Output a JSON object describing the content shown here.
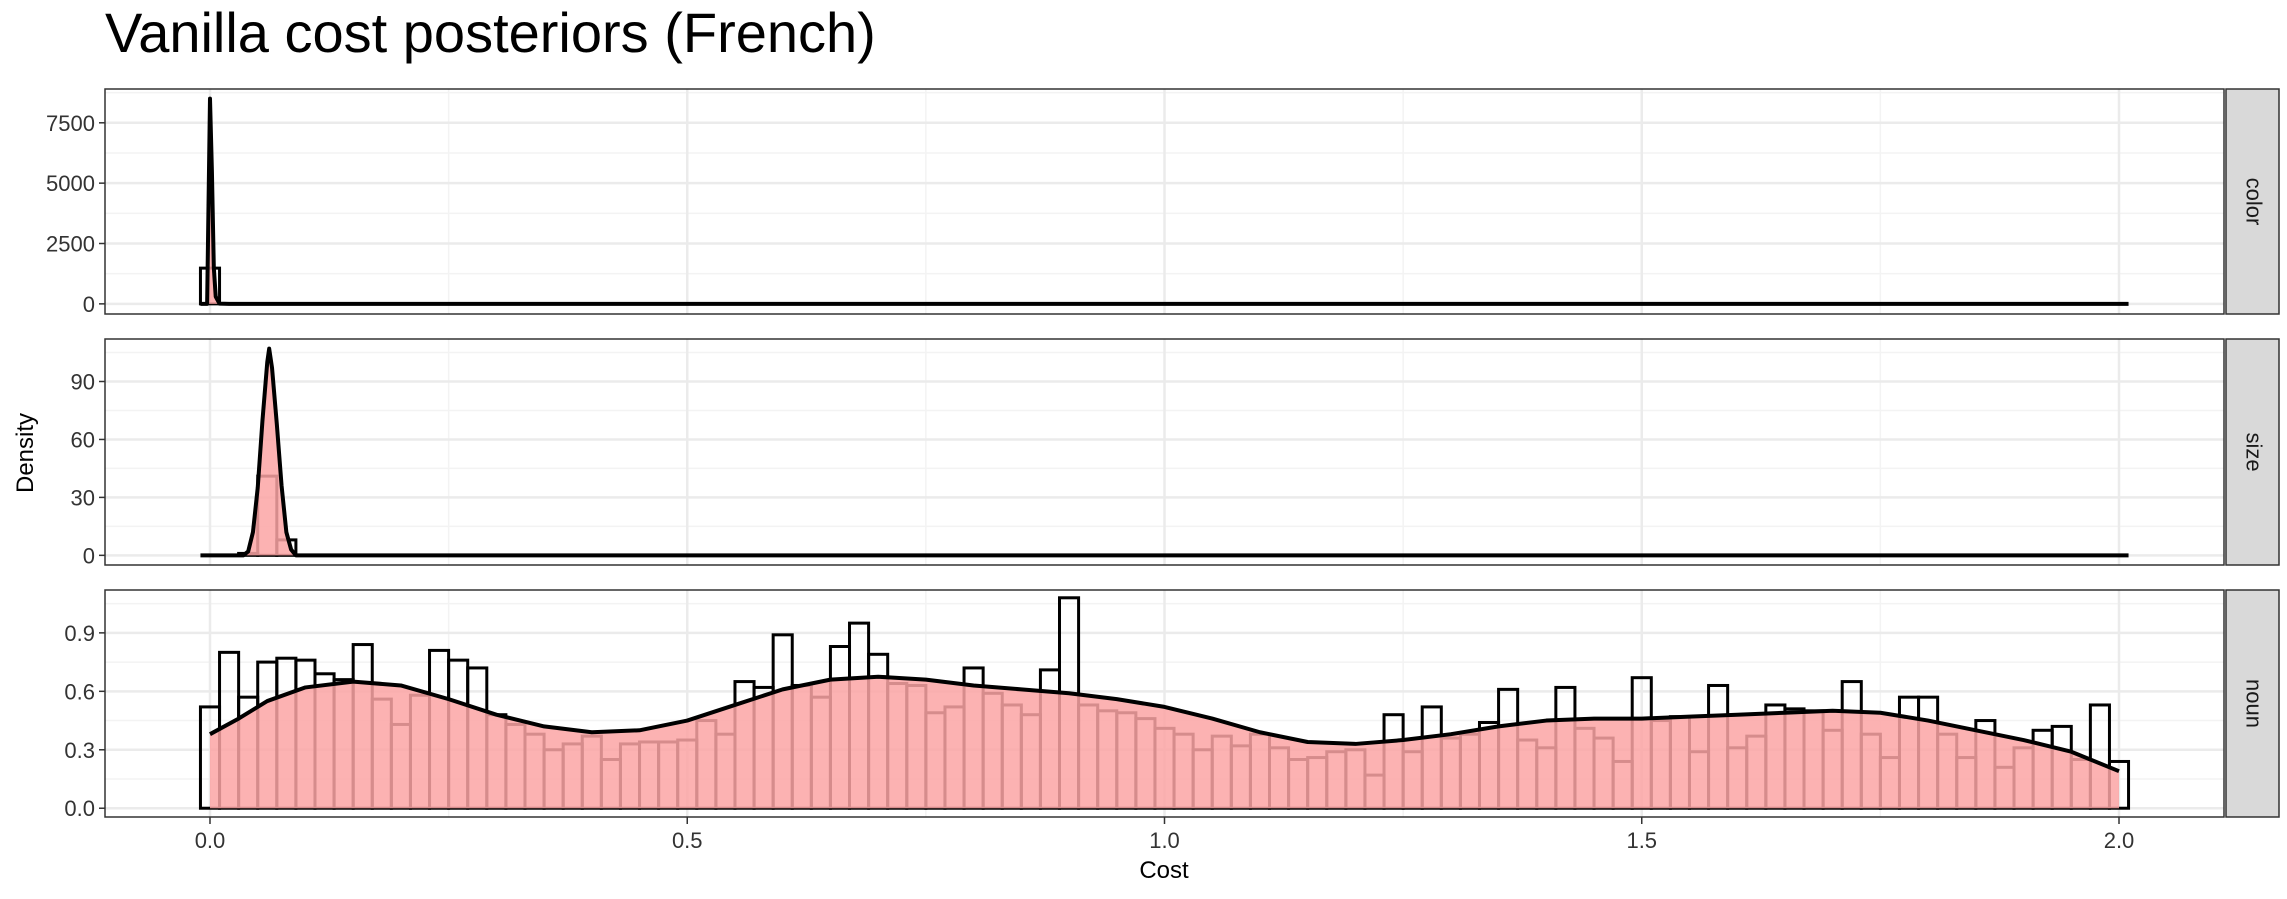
{
  "colors": {
    "fill": "#fca5a5",
    "line": "#000000",
    "grid_major": "#ebebeb",
    "grid_minor": "#f3f3f3",
    "strip_bg": "#d9d9d9",
    "panel_border": "#333333"
  },
  "chart_data": {
    "type": "histogram_density_facets",
    "title": "Vanilla cost posteriors (French)",
    "xlabel": "Cost",
    "ylabel": "Density",
    "xlim": [
      -0.11,
      2.11
    ],
    "xticks": [
      0.0,
      0.5,
      1.0,
      1.5,
      2.0
    ],
    "xtick_labels": [
      "0.0",
      "0.5",
      "1.0",
      "1.5",
      "2.0"
    ],
    "bin_width": 0.02,
    "grid": true,
    "facets": [
      {
        "label": "color",
        "ylim": [
          -420,
          8900
        ],
        "yticks": [
          0,
          2500,
          5000,
          7500
        ],
        "ytick_labels": [
          "0",
          "2500",
          "5000",
          "7500"
        ],
        "histogram_bars": [
          [
            0.0,
            1480
          ]
        ],
        "density_curve": [
          [
            -0.01,
            0
          ],
          [
            -0.003,
            0
          ],
          [
            0.0,
            8500
          ],
          [
            0.002,
            5500
          ],
          [
            0.004,
            1500
          ],
          [
            0.006,
            300
          ],
          [
            0.01,
            10
          ],
          [
            0.02,
            0
          ],
          [
            2.01,
            0
          ]
        ]
      },
      {
        "label": "size",
        "ylim": [
          -5,
          112
        ],
        "yticks": [
          0,
          30,
          60,
          90
        ],
        "ytick_labels": [
          "0",
          "30",
          "60",
          "90"
        ],
        "histogram_bars": [
          [
            0.02,
            0
          ],
          [
            0.04,
            1
          ],
          [
            0.06,
            41
          ],
          [
            0.08,
            8
          ]
        ],
        "density_curve": [
          [
            -0.01,
            0
          ],
          [
            0.035,
            0
          ],
          [
            0.04,
            2
          ],
          [
            0.045,
            12
          ],
          [
            0.05,
            35
          ],
          [
            0.055,
            70
          ],
          [
            0.06,
            100
          ],
          [
            0.062,
            107
          ],
          [
            0.065,
            97
          ],
          [
            0.07,
            68
          ],
          [
            0.075,
            36
          ],
          [
            0.08,
            12
          ],
          [
            0.085,
            3
          ],
          [
            0.09,
            0
          ],
          [
            2.01,
            0
          ]
        ]
      },
      {
        "label": "noun",
        "ylim": [
          -0.045,
          1.12
        ],
        "yticks": [
          0.0,
          0.3,
          0.6,
          0.9
        ],
        "ytick_labels": [
          "0.0",
          "0.3",
          "0.6",
          "0.9"
        ],
        "histogram_bars": [
          [
            0.0,
            0.52
          ],
          [
            0.02,
            0.8
          ],
          [
            0.04,
            0.57
          ],
          [
            0.06,
            0.75
          ],
          [
            0.08,
            0.77
          ],
          [
            0.1,
            0.76
          ],
          [
            0.12,
            0.69
          ],
          [
            0.14,
            0.66
          ],
          [
            0.16,
            0.84
          ],
          [
            0.18,
            0.56
          ],
          [
            0.2,
            0.43
          ],
          [
            0.22,
            0.58
          ],
          [
            0.24,
            0.81
          ],
          [
            0.26,
            0.76
          ],
          [
            0.28,
            0.72
          ],
          [
            0.3,
            0.48
          ],
          [
            0.32,
            0.43
          ],
          [
            0.34,
            0.38
          ],
          [
            0.36,
            0.3
          ],
          [
            0.38,
            0.33
          ],
          [
            0.4,
            0.37
          ],
          [
            0.42,
            0.25
          ],
          [
            0.44,
            0.33
          ],
          [
            0.46,
            0.34
          ],
          [
            0.48,
            0.34
          ],
          [
            0.5,
            0.35
          ],
          [
            0.52,
            0.45
          ],
          [
            0.54,
            0.38
          ],
          [
            0.56,
            0.65
          ],
          [
            0.58,
            0.62
          ],
          [
            0.6,
            0.89
          ],
          [
            0.62,
            0.63
          ],
          [
            0.64,
            0.57
          ],
          [
            0.66,
            0.83
          ],
          [
            0.68,
            0.95
          ],
          [
            0.7,
            0.79
          ],
          [
            0.72,
            0.64
          ],
          [
            0.74,
            0.63
          ],
          [
            0.76,
            0.49
          ],
          [
            0.78,
            0.52
          ],
          [
            0.8,
            0.72
          ],
          [
            0.82,
            0.59
          ],
          [
            0.84,
            0.53
          ],
          [
            0.86,
            0.48
          ],
          [
            0.88,
            0.71
          ],
          [
            0.9,
            1.08
          ],
          [
            0.92,
            0.53
          ],
          [
            0.94,
            0.5
          ],
          [
            0.96,
            0.49
          ],
          [
            0.98,
            0.46
          ],
          [
            1.0,
            0.41
          ],
          [
            1.02,
            0.38
          ],
          [
            1.04,
            0.3
          ],
          [
            1.06,
            0.37
          ],
          [
            1.08,
            0.32
          ],
          [
            1.1,
            0.38
          ],
          [
            1.12,
            0.31
          ],
          [
            1.14,
            0.25
          ],
          [
            1.16,
            0.26
          ],
          [
            1.18,
            0.29
          ],
          [
            1.2,
            0.3
          ],
          [
            1.22,
            0.17
          ],
          [
            1.24,
            0.48
          ],
          [
            1.26,
            0.29
          ],
          [
            1.28,
            0.52
          ],
          [
            1.3,
            0.36
          ],
          [
            1.32,
            0.38
          ],
          [
            1.34,
            0.44
          ],
          [
            1.36,
            0.61
          ],
          [
            1.38,
            0.35
          ],
          [
            1.4,
            0.31
          ],
          [
            1.42,
            0.62
          ],
          [
            1.44,
            0.41
          ],
          [
            1.46,
            0.36
          ],
          [
            1.48,
            0.24
          ],
          [
            1.5,
            0.67
          ],
          [
            1.52,
            0.45
          ],
          [
            1.54,
            0.47
          ],
          [
            1.56,
            0.29
          ],
          [
            1.58,
            0.63
          ],
          [
            1.6,
            0.31
          ],
          [
            1.62,
            0.37
          ],
          [
            1.64,
            0.53
          ],
          [
            1.66,
            0.51
          ],
          [
            1.68,
            0.5
          ],
          [
            1.7,
            0.4
          ],
          [
            1.72,
            0.65
          ],
          [
            1.74,
            0.38
          ],
          [
            1.76,
            0.26
          ],
          [
            1.78,
            0.57
          ],
          [
            1.8,
            0.57
          ],
          [
            1.82,
            0.38
          ],
          [
            1.84,
            0.26
          ],
          [
            1.86,
            0.45
          ],
          [
            1.88,
            0.21
          ],
          [
            1.9,
            0.31
          ],
          [
            1.92,
            0.4
          ],
          [
            1.94,
            0.42
          ],
          [
            1.96,
            0.25
          ],
          [
            1.98,
            0.53
          ],
          [
            2.0,
            0.24
          ]
        ],
        "density_curve": [
          [
            0.0,
            0.38
          ],
          [
            0.03,
            0.46
          ],
          [
            0.06,
            0.55
          ],
          [
            0.1,
            0.62
          ],
          [
            0.15,
            0.65
          ],
          [
            0.2,
            0.63
          ],
          [
            0.25,
            0.56
          ],
          [
            0.3,
            0.48
          ],
          [
            0.35,
            0.42
          ],
          [
            0.4,
            0.39
          ],
          [
            0.45,
            0.4
          ],
          [
            0.5,
            0.45
          ],
          [
            0.55,
            0.53
          ],
          [
            0.6,
            0.61
          ],
          [
            0.65,
            0.66
          ],
          [
            0.7,
            0.675
          ],
          [
            0.75,
            0.66
          ],
          [
            0.8,
            0.63
          ],
          [
            0.85,
            0.61
          ],
          [
            0.9,
            0.59
          ],
          [
            0.95,
            0.56
          ],
          [
            1.0,
            0.52
          ],
          [
            1.05,
            0.46
          ],
          [
            1.1,
            0.39
          ],
          [
            1.15,
            0.34
          ],
          [
            1.2,
            0.33
          ],
          [
            1.25,
            0.35
          ],
          [
            1.3,
            0.38
          ],
          [
            1.35,
            0.42
          ],
          [
            1.4,
            0.45
          ],
          [
            1.45,
            0.46
          ],
          [
            1.5,
            0.46
          ],
          [
            1.55,
            0.47
          ],
          [
            1.6,
            0.48
          ],
          [
            1.65,
            0.49
          ],
          [
            1.7,
            0.5
          ],
          [
            1.75,
            0.49
          ],
          [
            1.8,
            0.45
          ],
          [
            1.85,
            0.4
          ],
          [
            1.9,
            0.35
          ],
          [
            1.95,
            0.29
          ],
          [
            2.0,
            0.19
          ]
        ]
      }
    ]
  }
}
